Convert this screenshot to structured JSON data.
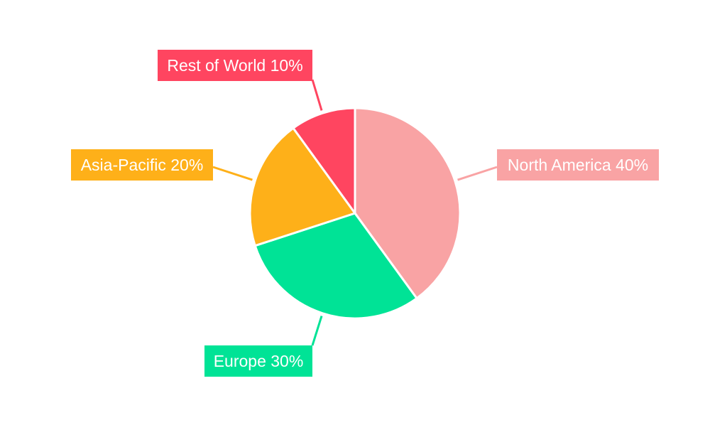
{
  "chart_data": {
    "type": "pie",
    "categories": [
      "North America",
      "Europe",
      "Asia-Pacific",
      "Rest of World"
    ],
    "values": [
      40,
      30,
      20,
      10
    ],
    "labels": [
      "North America 40%",
      "Europe 30%",
      "Asia-Pacific 20%",
      "Rest of World 10%"
    ],
    "colors": [
      "#F9A3A4",
      "#00E396",
      "#FEB019",
      "#FF4560"
    ],
    "start_angle": "top",
    "direction": "clockwise",
    "legend": "none"
  }
}
